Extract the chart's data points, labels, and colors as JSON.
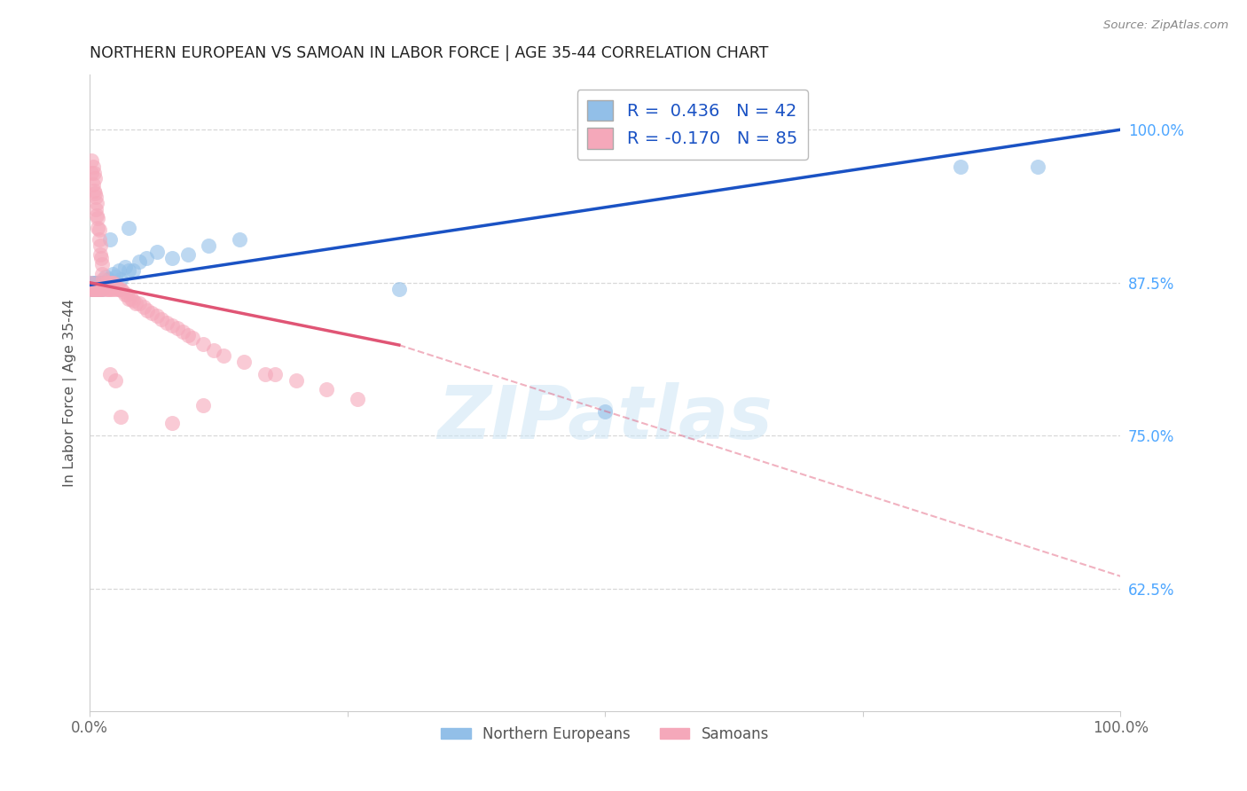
{
  "title": "NORTHERN EUROPEAN VS SAMOAN IN LABOR FORCE | AGE 35-44 CORRELATION CHART",
  "source": "Source: ZipAtlas.com",
  "ylabel": "In Labor Force | Age 35-44",
  "right_yticks": [
    0.625,
    0.75,
    0.875,
    1.0
  ],
  "right_yticklabels": [
    "62.5%",
    "75.0%",
    "87.5%",
    "100.0%"
  ],
  "xlim": [
    0.0,
    1.0
  ],
  "ylim": [
    0.525,
    1.045
  ],
  "legend_labels": [
    "Northern Europeans",
    "Samoans"
  ],
  "legend_r_blue": "R =  0.436",
  "legend_n_blue": "N = 42",
  "legend_r_pink": "R = -0.170",
  "legend_n_pink": "N = 85",
  "blue_color": "#92bfe8",
  "pink_color": "#f5a8ba",
  "blue_line_color": "#1a52c4",
  "pink_line_color": "#e05575",
  "watermark": "ZIPatlas",
  "background_color": "#ffffff",
  "grid_color": "#d8d8d8",
  "blue_scatter_x": [
    0.001,
    0.002,
    0.003,
    0.003,
    0.004,
    0.004,
    0.005,
    0.005,
    0.006,
    0.007,
    0.007,
    0.008,
    0.009,
    0.01,
    0.01,
    0.011,
    0.012,
    0.013,
    0.015,
    0.016,
    0.018,
    0.02,
    0.022,
    0.025,
    0.028,
    0.03,
    0.034,
    0.038,
    0.042,
    0.048,
    0.055,
    0.065,
    0.08,
    0.095,
    0.115,
    0.145,
    0.02,
    0.038,
    0.5,
    0.845,
    0.92,
    0.3
  ],
  "blue_scatter_y": [
    0.875,
    0.87,
    0.875,
    0.87,
    0.875,
    0.87,
    0.87,
    0.875,
    0.87,
    0.875,
    0.87,
    0.872,
    0.875,
    0.87,
    0.872,
    0.875,
    0.87,
    0.875,
    0.88,
    0.875,
    0.878,
    0.875,
    0.882,
    0.88,
    0.885,
    0.878,
    0.888,
    0.885,
    0.885,
    0.892,
    0.895,
    0.9,
    0.895,
    0.898,
    0.905,
    0.91,
    0.91,
    0.92,
    0.77,
    0.97,
    0.97,
    0.87
  ],
  "pink_scatter_x": [
    0.001,
    0.001,
    0.002,
    0.002,
    0.002,
    0.003,
    0.003,
    0.003,
    0.004,
    0.004,
    0.004,
    0.005,
    0.005,
    0.005,
    0.006,
    0.006,
    0.006,
    0.007,
    0.007,
    0.007,
    0.008,
    0.008,
    0.008,
    0.009,
    0.009,
    0.009,
    0.01,
    0.01,
    0.01,
    0.011,
    0.011,
    0.012,
    0.012,
    0.012,
    0.013,
    0.014,
    0.015,
    0.015,
    0.016,
    0.017,
    0.018,
    0.019,
    0.02,
    0.02,
    0.021,
    0.022,
    0.023,
    0.024,
    0.025,
    0.027,
    0.028,
    0.03,
    0.032,
    0.034,
    0.036,
    0.038,
    0.04,
    0.042,
    0.045,
    0.048,
    0.052,
    0.056,
    0.06,
    0.065,
    0.07,
    0.075,
    0.08,
    0.085,
    0.09,
    0.095,
    0.1,
    0.11,
    0.12,
    0.13,
    0.15,
    0.17,
    0.02,
    0.025,
    0.18,
    0.2,
    0.23,
    0.26,
    0.03,
    0.08,
    0.11
  ],
  "pink_scatter_y": [
    0.875,
    0.87,
    0.975,
    0.965,
    0.87,
    0.97,
    0.955,
    0.87,
    0.965,
    0.95,
    0.87,
    0.96,
    0.948,
    0.87,
    0.945,
    0.935,
    0.87,
    0.94,
    0.93,
    0.87,
    0.928,
    0.92,
    0.87,
    0.918,
    0.91,
    0.87,
    0.905,
    0.898,
    0.87,
    0.895,
    0.87,
    0.89,
    0.882,
    0.87,
    0.878,
    0.875,
    0.872,
    0.87,
    0.875,
    0.87,
    0.875,
    0.87,
    0.875,
    0.87,
    0.875,
    0.87,
    0.875,
    0.87,
    0.872,
    0.87,
    0.87,
    0.87,
    0.868,
    0.865,
    0.865,
    0.862,
    0.862,
    0.86,
    0.858,
    0.858,
    0.855,
    0.852,
    0.85,
    0.848,
    0.845,
    0.842,
    0.84,
    0.838,
    0.835,
    0.832,
    0.83,
    0.825,
    0.82,
    0.815,
    0.81,
    0.8,
    0.8,
    0.795,
    0.8,
    0.795,
    0.788,
    0.78,
    0.765,
    0.76,
    0.775
  ]
}
